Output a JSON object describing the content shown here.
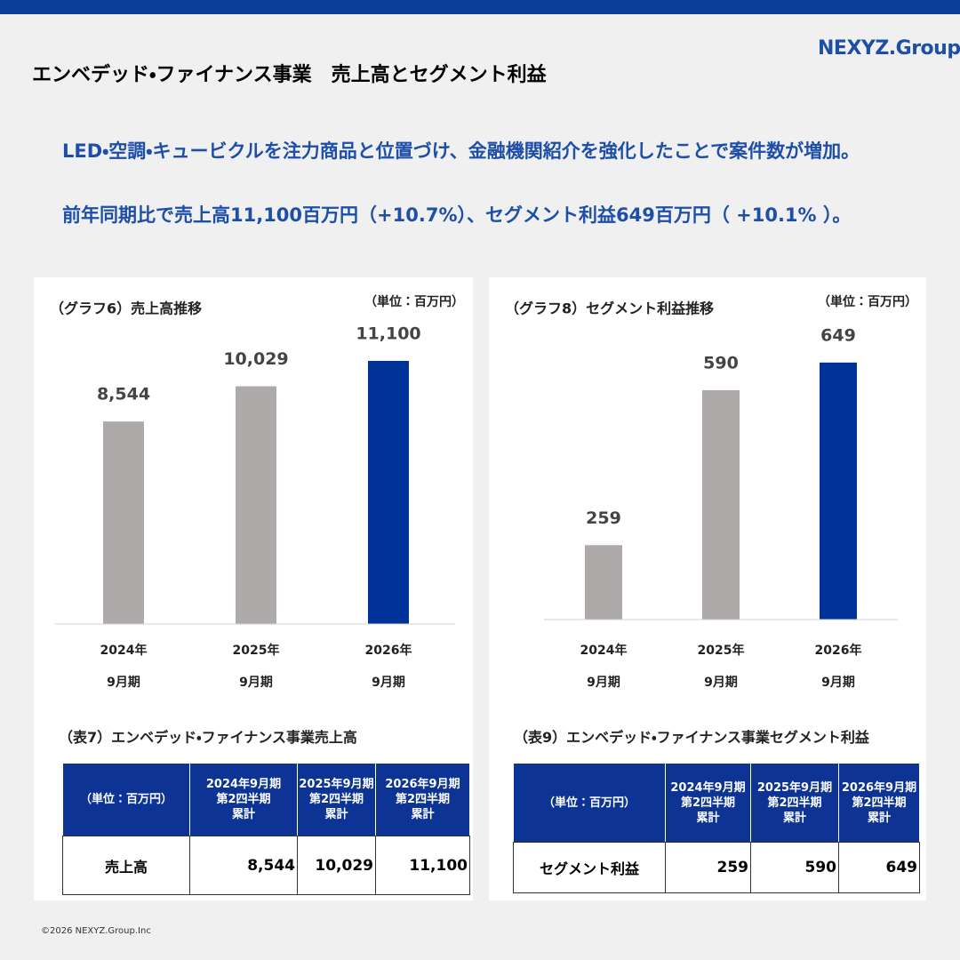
{
  "header": {
    "title": "エンベデッド・ファイナンス事業　売上高とセグメント利益",
    "logo": "NEXYZ.Group"
  },
  "message": [
    "LED・空調・キュービクルを注力商品と位置づけ、金融機関紹介を強化したことで案件数が増加。",
    "前年同期比で売上高11,100百万円（+10.7%）、セグメント利益649百万円（ +10.1% ）。"
  ],
  "chart_data": [
    {
      "type": "bar",
      "title": "（グラフ6）売上高推移",
      "unit": "（単位：百万円）",
      "categories": [
        [
          "2024年",
          "9月期"
        ],
        [
          "2025年",
          "9月期"
        ],
        [
          "2026年",
          "9月期"
        ]
      ],
      "values": [
        8544,
        10029,
        11100
      ],
      "value_labels": [
        "8,544",
        "10,029",
        "11,100"
      ],
      "colors": [
        "#aeaaaa",
        "#aeaaaa",
        "#003399"
      ],
      "ylim": [
        0,
        12000
      ]
    },
    {
      "type": "bar",
      "title": "（グラフ8）セグメント利益推移",
      "unit": "（単位：百万円）",
      "categories": [
        [
          "2024年",
          "9月期"
        ],
        [
          "2025年",
          "9月期"
        ],
        [
          "2026年",
          "9月期"
        ]
      ],
      "values": [
        259,
        590,
        649
      ],
      "colors": [
        "#aeaaaa",
        "#aeaaaa",
        "#003399"
      ],
      "ylim": [
        100,
        700
      ]
    }
  ],
  "tables": [
    {
      "title": "（表7）エンベデッド・ファイナンス事業売上高",
      "header": [
        [
          "（単位：百万円）"
        ],
        [
          "2024年9月期",
          "第2四半期",
          "累計"
        ],
        [
          "2025年9月期",
          "第2四半期",
          "累計"
        ],
        [
          "2026年9月期",
          "第2四半期",
          "累計"
        ]
      ],
      "rows": [
        [
          "売上高",
          "8,544",
          "10,029",
          "11,100"
        ]
      ]
    },
    {
      "title": "（表9）エンベデッド・ファイナンス事業セグメント利益",
      "header": [
        [
          "（単位：百万円）"
        ],
        [
          "2024年9月期",
          "第2四半期",
          "累計"
        ],
        [
          "2025年9月期",
          "第2四半期",
          "累計"
        ],
        [
          "2026年9月期",
          "第2四半期",
          "累計"
        ]
      ],
      "rows": [
        [
          "セグメント利益",
          "259",
          "590",
          "649"
        ]
      ]
    }
  ],
  "footer": "©2026 NEXYZ.Group.Inc"
}
